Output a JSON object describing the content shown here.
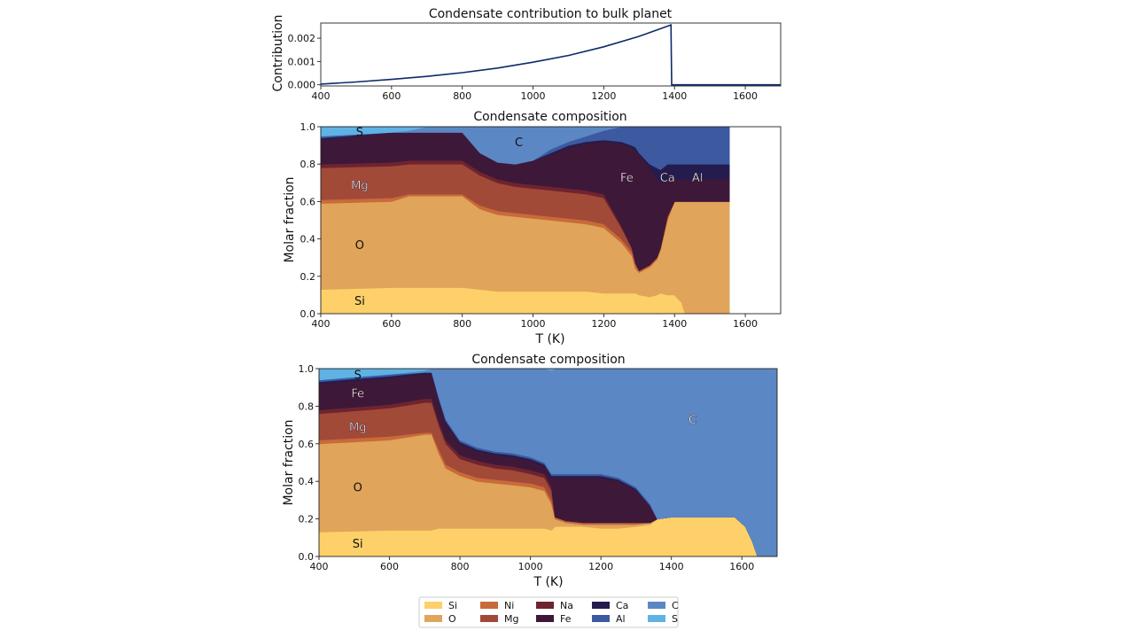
{
  "figure": {
    "legend_title": "",
    "legend": [
      {
        "name": "Si",
        "color": "#fdd06a"
      },
      {
        "name": "O",
        "color": "#e0a45a"
      },
      {
        "name": "Ni",
        "color": "#c96a3a"
      },
      {
        "name": "Mg",
        "color": "#a24a38"
      },
      {
        "name": "Na",
        "color": "#6e2430"
      },
      {
        "name": "Fe",
        "color": "#3e1838"
      },
      {
        "name": "Ca",
        "color": "#241c4e"
      },
      {
        "name": "Al",
        "color": "#3d59a0"
      },
      {
        "name": "C",
        "color": "#5b88c4"
      },
      {
        "name": "S",
        "color": "#5fb2e4"
      }
    ]
  },
  "chart_data": [
    {
      "type": "line",
      "title": "Condensate contribution to bulk planet",
      "xlabel": "",
      "ylabel": "Contribution",
      "xlim": [
        400,
        1700
      ],
      "ylim": [
        -5e-05,
        0.00265
      ],
      "xticks": [
        400,
        600,
        800,
        1000,
        1200,
        1400,
        1600
      ],
      "yticks": [
        "0.000",
        "0.001",
        "0.002"
      ],
      "ytick_values": [
        0.0,
        0.001,
        0.002
      ],
      "series": [
        {
          "color": "#0d2a6b",
          "x": [
            400,
            500,
            600,
            700,
            800,
            900,
            1000,
            1100,
            1200,
            1300,
            1390,
            1392,
            1500,
            1700
          ],
          "y": [
            3e-05,
            0.00012,
            0.00023,
            0.00036,
            0.00052,
            0.00072,
            0.00097,
            0.00126,
            0.00163,
            0.00208,
            0.00257,
            0.0,
            0.0,
            0.0
          ]
        }
      ]
    },
    {
      "type": "area",
      "title": "Condensate composition",
      "xlabel": "T (K)",
      "ylabel": "Molar fraction",
      "xlim": [
        400,
        1700
      ],
      "ylim": [
        0,
        1
      ],
      "xticks": [
        400,
        600,
        800,
        1000,
        1200,
        1400,
        1600
      ],
      "yticks": [
        "0.0",
        "0.2",
        "0.4",
        "0.6",
        "0.8",
        "1.0"
      ],
      "x": [
        400,
        600,
        650,
        700,
        800,
        850,
        900,
        950,
        1000,
        1050,
        1100,
        1150,
        1200,
        1250,
        1280,
        1290,
        1300,
        1330,
        1350,
        1360,
        1380,
        1400,
        1420,
        1430,
        1440,
        1500,
        1555
      ],
      "boundaries": [
        {
          "name": "Si",
          "values": [
            0.13,
            0.14,
            0.14,
            0.14,
            0.14,
            0.13,
            0.12,
            0.12,
            0.12,
            0.12,
            0.12,
            0.12,
            0.11,
            0.11,
            0.11,
            0.11,
            0.1,
            0.09,
            0.1,
            0.11,
            0.1,
            0.1,
            0.06,
            0.0,
            0.0,
            0.0,
            0.0
          ]
        },
        {
          "name": "O",
          "values": [
            0.59,
            0.6,
            0.63,
            0.63,
            0.63,
            0.56,
            0.53,
            0.52,
            0.51,
            0.5,
            0.49,
            0.48,
            0.46,
            0.38,
            0.31,
            0.24,
            0.22,
            0.25,
            0.29,
            0.34,
            0.5,
            0.6,
            0.6,
            0.6,
            0.6,
            0.6,
            0.6
          ]
        },
        {
          "name": "Ni",
          "values": [
            0.61,
            0.62,
            0.64,
            0.64,
            0.64,
            0.58,
            0.55,
            0.54,
            0.53,
            0.52,
            0.51,
            0.5,
            0.48,
            0.4,
            0.33,
            0.26,
            0.23,
            0.26,
            0.3,
            0.35,
            0.52,
            0.6,
            0.6,
            0.6,
            0.6,
            0.6,
            0.6
          ]
        },
        {
          "name": "Mg",
          "values": [
            0.78,
            0.79,
            0.8,
            0.8,
            0.8,
            0.74,
            0.7,
            0.68,
            0.67,
            0.66,
            0.65,
            0.64,
            0.62,
            0.46,
            0.35,
            0.27,
            0.23,
            0.26,
            0.3,
            0.35,
            0.52,
            0.6,
            0.6,
            0.6,
            0.6,
            0.6,
            0.6
          ]
        },
        {
          "name": "Na",
          "values": [
            0.8,
            0.81,
            0.82,
            0.82,
            0.82,
            0.76,
            0.72,
            0.7,
            0.69,
            0.68,
            0.67,
            0.66,
            0.64,
            0.47,
            0.35,
            0.27,
            0.23,
            0.26,
            0.3,
            0.35,
            0.52,
            0.6,
            0.6,
            0.6,
            0.6,
            0.6,
            0.6
          ]
        },
        {
          "name": "Fe",
          "values": [
            0.93,
            0.97,
            0.97,
            0.97,
            0.97,
            0.86,
            0.81,
            0.8,
            0.82,
            0.85,
            0.89,
            0.91,
            0.92,
            0.91,
            0.89,
            0.87,
            0.85,
            0.78,
            0.73,
            0.7,
            0.72,
            0.72,
            0.72,
            0.72,
            0.72,
            0.72,
            0.72
          ]
        },
        {
          "name": "Ca",
          "values": [
            0.94,
            0.97,
            0.97,
            0.97,
            0.97,
            0.86,
            0.81,
            0.8,
            0.82,
            0.86,
            0.9,
            0.92,
            0.93,
            0.92,
            0.9,
            0.89,
            0.86,
            0.8,
            0.78,
            0.77,
            0.8,
            0.8,
            0.8,
            0.8,
            0.8,
            0.8,
            0.8
          ]
        },
        {
          "name": "Al",
          "values": [
            0.95,
            0.97,
            0.97,
            0.97,
            0.97,
            0.86,
            0.81,
            0.8,
            0.82,
            0.88,
            0.92,
            0.95,
            0.98,
            1.0,
            1.0,
            1.0,
            1.0,
            1.0,
            1.0,
            1.0,
            1.0,
            1.0,
            1.0,
            1.0,
            1.0,
            1.0,
            1.0
          ]
        },
        {
          "name": "C",
          "values": [
            0.95,
            0.97,
            0.98,
            1.0,
            1.0,
            1.0,
            1.0,
            1.0,
            1.0,
            1.0,
            1.0,
            1.0,
            1.0,
            1.0,
            1.0,
            1.0,
            1.0,
            1.0,
            1.0,
            1.0,
            1.0,
            1.0,
            1.0,
            1.0,
            1.0,
            1.0,
            1.0
          ]
        },
        {
          "name": "S",
          "values": [
            1.0,
            1.0,
            1.0,
            1.0,
            1.0,
            1.0,
            1.0,
            1.0,
            1.0,
            1.0,
            1.0,
            1.0,
            1.0,
            1.0,
            1.0,
            1.0,
            1.0,
            1.0,
            1.0,
            1.0,
            1.0,
            1.0,
            1.0,
            1.0,
            1.0,
            1.0,
            1.0
          ]
        }
      ],
      "labels": [
        {
          "text": "S",
          "x": 510,
          "y": 0.975,
          "color": "#111111"
        },
        {
          "text": "C",
          "x": 960,
          "y": 0.92,
          "color": "#111111"
        },
        {
          "text": "Mg",
          "x": 510,
          "y": 0.69,
          "color": "#ffffff"
        },
        {
          "text": "Fe",
          "x": 1265,
          "y": 0.73,
          "color": "#ffffff"
        },
        {
          "text": "Ca",
          "x": 1380,
          "y": 0.73,
          "color": "#ffffff"
        },
        {
          "text": "Al",
          "x": 1465,
          "y": 0.73,
          "color": "#ffffff"
        },
        {
          "text": "O",
          "x": 510,
          "y": 0.37,
          "color": "#111111"
        },
        {
          "text": "Si",
          "x": 510,
          "y": 0.07,
          "color": "#111111"
        }
      ]
    },
    {
      "type": "area",
      "title": "Condensate composition",
      "xlabel": "T (K)",
      "ylabel": "Molar fraction",
      "xlim": [
        400,
        1700
      ],
      "ylim": [
        0,
        1
      ],
      "xticks": [
        400,
        600,
        800,
        1000,
        1200,
        1400,
        1600
      ],
      "yticks": [
        "0.0",
        "0.2",
        "0.4",
        "0.6",
        "0.8",
        "1.0"
      ],
      "x": [
        400,
        600,
        700,
        720,
        740,
        760,
        800,
        850,
        900,
        950,
        1000,
        1040,
        1060,
        1070,
        1100,
        1150,
        1200,
        1250,
        1300,
        1340,
        1360,
        1400,
        1500,
        1580,
        1610,
        1630,
        1645,
        1700
      ],
      "boundaries": [
        {
          "name": "Si",
          "values": [
            0.13,
            0.14,
            0.14,
            0.14,
            0.15,
            0.15,
            0.15,
            0.15,
            0.15,
            0.15,
            0.15,
            0.15,
            0.14,
            0.16,
            0.16,
            0.16,
            0.15,
            0.15,
            0.16,
            0.17,
            0.2,
            0.21,
            0.21,
            0.21,
            0.16,
            0.08,
            0.0,
            0.0
          ]
        },
        {
          "name": "O",
          "values": [
            0.6,
            0.62,
            0.65,
            0.65,
            0.55,
            0.47,
            0.43,
            0.4,
            0.39,
            0.38,
            0.37,
            0.35,
            0.28,
            0.2,
            0.18,
            0.17,
            0.17,
            0.17,
            0.17,
            0.18,
            0.2,
            0.21,
            0.21,
            0.21,
            0.16,
            0.08,
            0.0,
            0.0
          ]
        },
        {
          "name": "Ni",
          "values": [
            0.62,
            0.64,
            0.66,
            0.66,
            0.57,
            0.49,
            0.45,
            0.42,
            0.41,
            0.4,
            0.39,
            0.37,
            0.3,
            0.21,
            0.19,
            0.18,
            0.18,
            0.18,
            0.18,
            0.18,
            0.2,
            0.21,
            0.21,
            0.21,
            0.16,
            0.08,
            0.0,
            0.0
          ]
        },
        {
          "name": "Mg",
          "values": [
            0.76,
            0.79,
            0.82,
            0.82,
            0.7,
            0.6,
            0.52,
            0.49,
            0.47,
            0.46,
            0.44,
            0.42,
            0.35,
            0.21,
            0.19,
            0.18,
            0.18,
            0.18,
            0.18,
            0.18,
            0.2,
            0.21,
            0.21,
            0.21,
            0.16,
            0.08,
            0.0,
            0.0
          ]
        },
        {
          "name": "Na",
          "values": [
            0.78,
            0.81,
            0.84,
            0.84,
            0.72,
            0.62,
            0.54,
            0.51,
            0.49,
            0.48,
            0.46,
            0.44,
            0.37,
            0.21,
            0.19,
            0.18,
            0.18,
            0.18,
            0.18,
            0.18,
            0.2,
            0.21,
            0.21,
            0.21,
            0.16,
            0.08,
            0.0,
            0.0
          ]
        },
        {
          "name": "Fe",
          "values": [
            0.92,
            0.95,
            0.97,
            0.97,
            0.83,
            0.71,
            0.6,
            0.56,
            0.54,
            0.53,
            0.51,
            0.48,
            0.42,
            0.42,
            0.42,
            0.42,
            0.42,
            0.4,
            0.35,
            0.27,
            0.2,
            0.21,
            0.21,
            0.21,
            0.16,
            0.08,
            0.0,
            0.0
          ]
        },
        {
          "name": "Ca",
          "values": [
            0.93,
            0.96,
            0.98,
            0.98,
            0.84,
            0.72,
            0.61,
            0.57,
            0.55,
            0.54,
            0.52,
            0.49,
            0.43,
            0.43,
            0.43,
            0.43,
            0.43,
            0.41,
            0.36,
            0.27,
            0.2,
            0.21,
            0.21,
            0.21,
            0.16,
            0.08,
            0.0,
            0.0
          ]
        },
        {
          "name": "Al",
          "values": [
            0.94,
            0.97,
            0.98,
            0.98,
            0.85,
            0.73,
            0.62,
            0.58,
            0.56,
            0.55,
            0.53,
            0.5,
            0.44,
            0.44,
            0.44,
            0.44,
            0.44,
            0.42,
            0.37,
            0.28,
            0.2,
            0.21,
            0.21,
            0.21,
            0.16,
            0.08,
            0.0,
            0.0
          ]
        },
        {
          "name": "C",
          "values": [
            0.94,
            0.97,
            0.99,
            1.0,
            1.0,
            1.0,
            1.0,
            1.0,
            1.0,
            1.0,
            1.0,
            1.0,
            0.99,
            1.0,
            1.0,
            1.0,
            1.0,
            1.0,
            1.0,
            1.0,
            1.0,
            1.0,
            1.0,
            1.0,
            1.0,
            1.0,
            1.0,
            1.0
          ]
        },
        {
          "name": "S",
          "values": [
            1.0,
            1.0,
            1.0,
            1.0,
            1.0,
            1.0,
            1.0,
            1.0,
            1.0,
            1.0,
            1.0,
            1.0,
            1.0,
            1.0,
            1.0,
            1.0,
            1.0,
            1.0,
            1.0,
            1.0,
            1.0,
            1.0,
            1.0,
            1.0,
            1.0,
            1.0,
            1.0,
            1.0
          ]
        }
      ],
      "labels": [
        {
          "text": "S",
          "x": 510,
          "y": 0.97,
          "color": "#111111"
        },
        {
          "text": "Fe",
          "x": 510,
          "y": 0.87,
          "color": "#ffffff"
        },
        {
          "text": "Mg",
          "x": 510,
          "y": 0.69,
          "color": "#ffffff"
        },
        {
          "text": "C",
          "x": 1460,
          "y": 0.73,
          "color": "#ffffff"
        },
        {
          "text": "O",
          "x": 510,
          "y": 0.37,
          "color": "#111111"
        },
        {
          "text": "Si",
          "x": 510,
          "y": 0.07,
          "color": "#111111"
        }
      ]
    }
  ]
}
